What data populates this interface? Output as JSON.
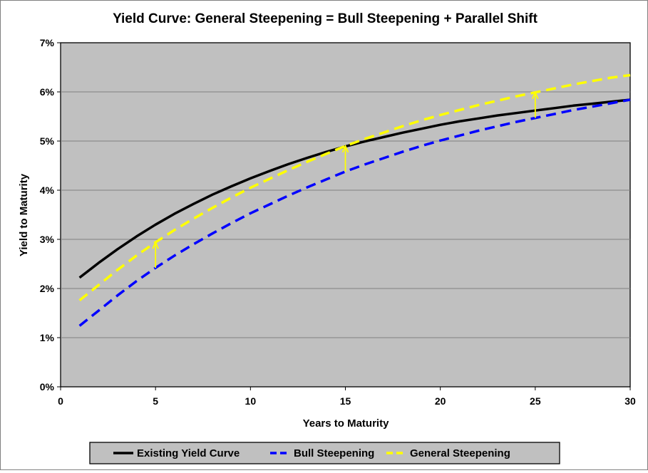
{
  "chart_data": {
    "type": "line",
    "title": "Yield Curve: General Steepening = Bull Steepening + Parallel Shift",
    "xlabel": "Years to Maturity",
    "ylabel": "Yield to Maturity",
    "xlim": [
      0,
      30
    ],
    "ylim": [
      0,
      7
    ],
    "x_ticks": [
      "0",
      "5",
      "10",
      "15",
      "20",
      "25",
      "30"
    ],
    "y_ticks": [
      "0%",
      "1%",
      "2%",
      "3%",
      "4%",
      "5%",
      "6%",
      "7%"
    ],
    "grid": true,
    "plot_background": "#C0C0C0",
    "legend_position": "bottom",
    "x": [
      1,
      2,
      3,
      4,
      5,
      6,
      7,
      8,
      9,
      10,
      11,
      12,
      13,
      14,
      15,
      16,
      17,
      18,
      19,
      20,
      21,
      22,
      23,
      24,
      25,
      26,
      27,
      28,
      29,
      30
    ],
    "series": [
      {
        "name": "Existing Yield Curve",
        "color": "#000000",
        "dash": "solid",
        "values": [
          2.22,
          2.52,
          2.8,
          3.06,
          3.3,
          3.52,
          3.72,
          3.91,
          4.08,
          4.24,
          4.39,
          4.53,
          4.66,
          4.78,
          4.89,
          4.99,
          5.08,
          5.17,
          5.25,
          5.33,
          5.4,
          5.46,
          5.52,
          5.57,
          5.62,
          5.67,
          5.72,
          5.76,
          5.8,
          5.84
        ]
      },
      {
        "name": "Bull Steepening",
        "color": "#0000FF",
        "dash": "dashed",
        "values": [
          1.24,
          1.55,
          1.86,
          2.15,
          2.42,
          2.67,
          2.9,
          3.12,
          3.33,
          3.53,
          3.71,
          3.89,
          4.06,
          4.22,
          4.38,
          4.52,
          4.65,
          4.78,
          4.9,
          5.01,
          5.11,
          5.21,
          5.3,
          5.39,
          5.47,
          5.55,
          5.63,
          5.7,
          5.77,
          5.84
        ]
      },
      {
        "name": "General Steepening",
        "color": "#FFFF00",
        "dash": "dashed",
        "values": [
          1.76,
          2.07,
          2.38,
          2.67,
          2.94,
          3.19,
          3.42,
          3.64,
          3.85,
          4.05,
          4.23,
          4.41,
          4.58,
          4.74,
          4.9,
          5.04,
          5.17,
          5.3,
          5.42,
          5.53,
          5.63,
          5.73,
          5.82,
          5.91,
          5.99,
          6.07,
          6.15,
          6.22,
          6.29,
          6.34
        ]
      }
    ],
    "annotations": [
      {
        "type": "arrow",
        "x": 5,
        "y_from": 2.42,
        "y_to": 2.94,
        "color": "#FFFF00"
      },
      {
        "type": "arrow",
        "x": 15,
        "y_from": 4.38,
        "y_to": 4.9,
        "color": "#FFFF00"
      },
      {
        "type": "arrow",
        "x": 25,
        "y_from": 5.47,
        "y_to": 5.99,
        "color": "#FFFF00"
      }
    ]
  }
}
